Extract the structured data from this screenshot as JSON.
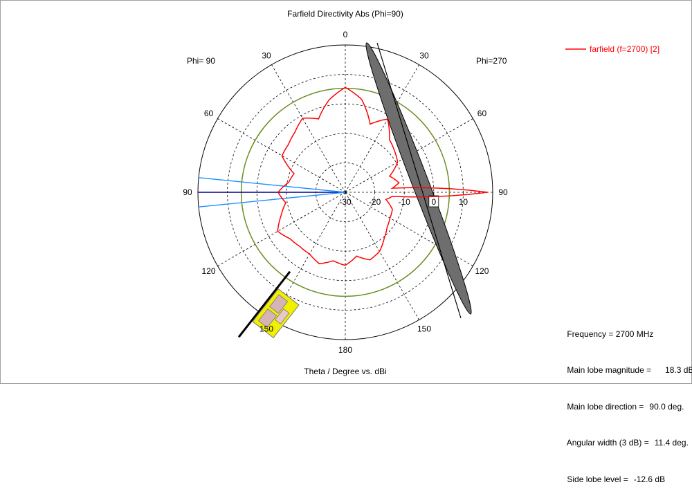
{
  "chart_data": {
    "type": "polar-line",
    "title": "Farfield Directivity Abs (Phi=90)",
    "xlabel": "Theta / Degree vs. dBi",
    "left_label": "Phi= 90",
    "right_label": "Phi=270",
    "angle_ticks_right": [
      "0",
      "30",
      "60",
      "90",
      "120",
      "150",
      "180"
    ],
    "angle_ticks_left": [
      "30",
      "60",
      "90",
      "120",
      "150"
    ],
    "radial_ticks": [
      "-30",
      "-20",
      "-10",
      "0",
      "10"
    ],
    "radial_range_dbi": [
      -30,
      20
    ],
    "reference_circle_dbi": 5.3,
    "main_lobe_angle_deg": 90,
    "beamwidth_3db_deg": 11.4,
    "grid": true,
    "legend_position": "top-right",
    "series": [
      {
        "name": "farfield (f=2700) [2]",
        "color": "#ff0000",
        "points": [
          [
            0,
            5.6
          ],
          [
            10,
            1.8
          ],
          [
            20,
            -3.5
          ],
          [
            30,
            -1.0
          ],
          [
            40,
            -3.4
          ],
          [
            50,
            -4.8
          ],
          [
            60,
            -5.2
          ],
          [
            70,
            -11.5
          ],
          [
            80,
            -10.5
          ],
          [
            90,
            -7.2
          ],
          [
            100,
            -9.5
          ],
          [
            110,
            -6.8
          ],
          [
            120,
            -3.5
          ],
          [
            130,
            -5.5
          ],
          [
            140,
            -6.0
          ],
          [
            150,
            -5.8
          ],
          [
            160,
            -4.2
          ],
          [
            170,
            -6.4
          ],
          [
            180,
            -5.2
          ],
          [
            190,
            -8.0
          ],
          [
            200,
            -5.6
          ],
          [
            210,
            -6.8
          ],
          [
            220,
            -9.5
          ],
          [
            230,
            -11.5
          ],
          [
            240,
            -12.5
          ],
          [
            250,
            -13.0
          ],
          [
            260,
            -16.0
          ],
          [
            265,
            -14.0
          ],
          [
            270,
            18.3
          ],
          [
            275,
            -14.0
          ],
          [
            280,
            -11.5
          ],
          [
            290,
            -14.0
          ],
          [
            300,
            -9.5
          ],
          [
            310,
            -8.2
          ],
          [
            320,
            -6.7
          ],
          [
            330,
            -1.3
          ],
          [
            340,
            -5.4
          ],
          [
            350,
            2.0
          ],
          [
            360,
            5.6
          ]
        ]
      }
    ]
  },
  "info": {
    "frequency_label": "Frequency = 2700 MHz",
    "main_lobe_magnitude_label": "Main lobe magnitude =",
    "main_lobe_magnitude_value": "18.3 dBi",
    "main_lobe_direction_label": "Main lobe direction =",
    "main_lobe_direction_value": "90.0 deg.",
    "angular_width_label": "Angular width (3 dB) =",
    "angular_width_value": "11.4 deg.",
    "side_lobe_label": "Side lobe level =",
    "side_lobe_value": "-12.6 dB"
  },
  "colors": {
    "pattern": "#ff0000",
    "main_lobe_axis": "#00008b",
    "beamwidth_lines": "#1e90ff",
    "reference_circle": "#6b8e23",
    "grid": "#000000",
    "plane_fill": "#6e6e6e"
  }
}
